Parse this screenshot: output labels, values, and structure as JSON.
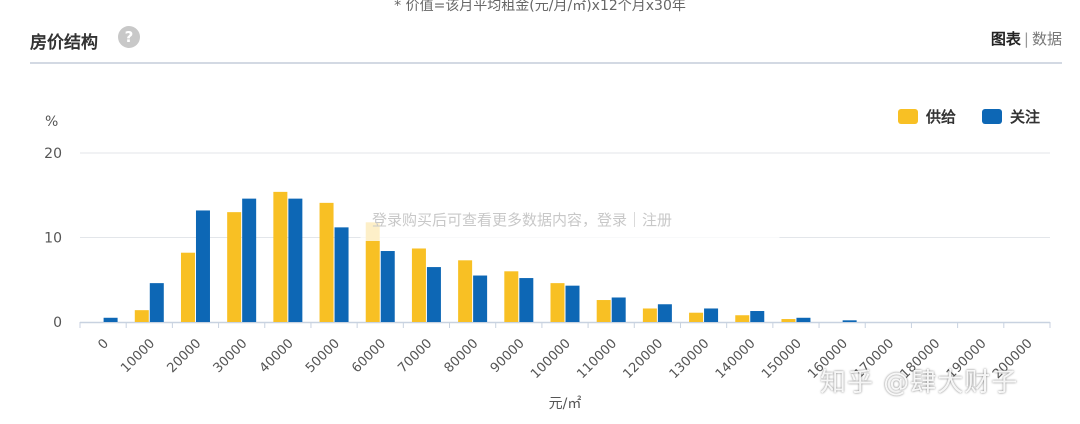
{
  "note": "* 价值=该月平均租金(元/月/㎡)x12个月x30年",
  "header": {
    "title": "房价结构",
    "help": "?",
    "tab_chart": "图表",
    "tab_sep": "|",
    "tab_data": "数据"
  },
  "overlay_text": "登录购买后可查看更多数据内容，登录｜注册",
  "watermark": "知乎 @肆大财子",
  "colors": {
    "supply": "#f8c024",
    "attention": "#0d67b5"
  },
  "chart_data": {
    "type": "bar",
    "title": "",
    "xlabel": "元/㎡",
    "ylabel": "%",
    "ylim": [
      0,
      20
    ],
    "yticks": [
      0,
      10,
      20
    ],
    "grid": true,
    "legend_position": "top-right",
    "categories": [
      "0",
      "10000",
      "20000",
      "30000",
      "40000",
      "50000",
      "60000",
      "70000",
      "80000",
      "90000",
      "100000",
      "110000",
      "120000",
      "130000",
      "140000",
      "150000",
      "160000",
      "170000",
      "180000",
      "190000",
      "200000"
    ],
    "series": [
      {
        "name": "供给",
        "values": [
          0,
          1.4,
          8.2,
          13.0,
          15.4,
          14.1,
          11.8,
          8.7,
          7.3,
          6.0,
          4.6,
          2.6,
          1.6,
          1.1,
          0.8,
          0.35,
          0,
          0,
          0,
          0,
          0
        ]
      },
      {
        "name": "关注",
        "values": [
          0.5,
          4.6,
          13.2,
          14.6,
          14.6,
          11.2,
          8.4,
          6.5,
          5.5,
          5.2,
          4.3,
          2.9,
          2.1,
          1.6,
          1.3,
          0.5,
          0.2,
          0,
          0,
          0,
          0
        ]
      }
    ]
  }
}
